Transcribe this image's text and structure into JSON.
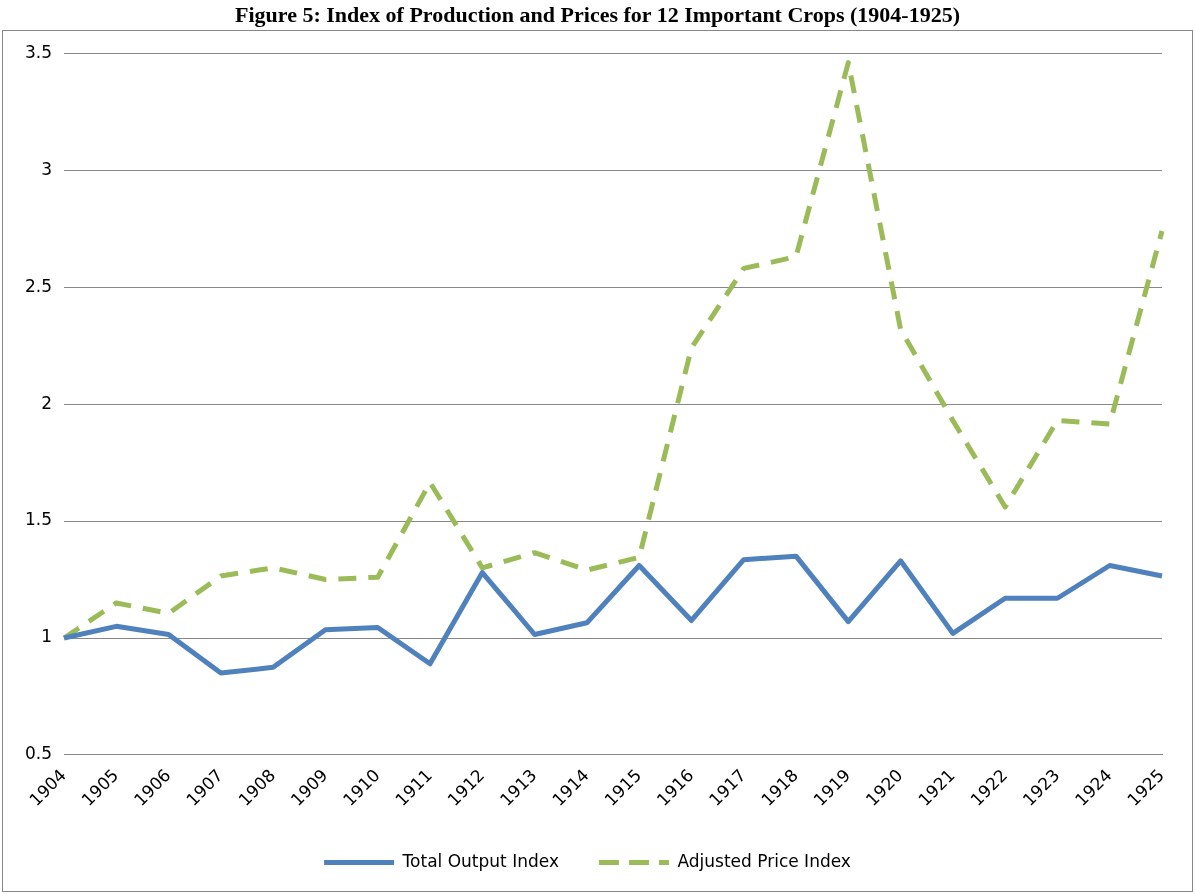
{
  "chart_data": {
    "type": "line",
    "title": "Figure 5: Index of Production and Prices for 12 Important Crops (1904-1925)",
    "categories": [
      "1904",
      "1905",
      "1906",
      "1907",
      "1908",
      "1909",
      "1910",
      "1911",
      "1912",
      "1913",
      "1914",
      "1915",
      "1916",
      "1917",
      "1918",
      "1919",
      "1920",
      "1921",
      "1922",
      "1923",
      "1924",
      "1925"
    ],
    "series": [
      {
        "name": "Total Output Index",
        "color": "#4f81bd",
        "line_style": "solid",
        "values": [
          1.0,
          1.05,
          1.015,
          0.85,
          0.875,
          1.035,
          1.045,
          0.89,
          1.28,
          1.015,
          1.065,
          1.31,
          1.075,
          1.335,
          1.35,
          1.07,
          1.33,
          1.02,
          1.17,
          1.17,
          1.31,
          1.265
        ]
      },
      {
        "name": "Adjusted Price Index",
        "color": "#9bbb59",
        "line_style": "dashed",
        "values": [
          1.0,
          1.15,
          1.105,
          1.265,
          1.3,
          1.25,
          1.26,
          1.665,
          1.3,
          1.365,
          1.29,
          1.345,
          2.24,
          2.58,
          2.63,
          3.46,
          2.32,
          1.93,
          1.56,
          1.93,
          1.915,
          2.74
        ]
      }
    ],
    "ylim": [
      0.5,
      3.5
    ],
    "yticks": [
      0.5,
      1,
      1.5,
      2,
      2.5,
      3,
      3.5
    ],
    "grid": "y",
    "legend": "bottom",
    "marker": "none"
  }
}
